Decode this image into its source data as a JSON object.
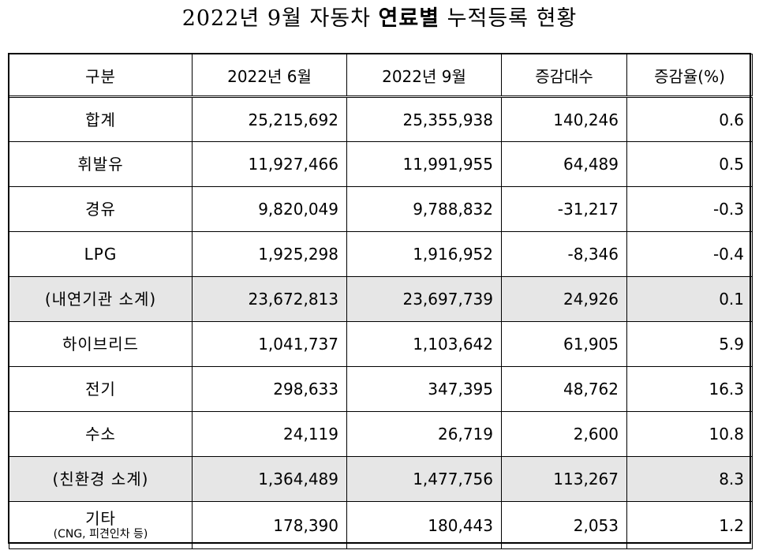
{
  "title": {
    "part1": "2022년 9월 자동차 ",
    "part2": "연료별",
    "part3": " 누적등록 현황"
  },
  "table": {
    "headers": [
      "구분",
      "2022년 6월",
      "2022년 9월",
      "증감대수",
      "증감율(%)"
    ],
    "rows": [
      {
        "label": "합계",
        "sub": "",
        "jun": "25,215,692",
        "sep": "25,355,938",
        "diff": "140,246",
        "rate": "0.6",
        "subtotal": false
      },
      {
        "label": "휘발유",
        "sub": "",
        "jun": "11,927,466",
        "sep": "11,991,955",
        "diff": "64,489",
        "rate": "0.5",
        "subtotal": false
      },
      {
        "label": "경유",
        "sub": "",
        "jun": "9,820,049",
        "sep": "9,788,832",
        "diff": "-31,217",
        "rate": "-0.3",
        "subtotal": false
      },
      {
        "label": "LPG",
        "sub": "",
        "jun": "1,925,298",
        "sep": "1,916,952",
        "diff": "-8,346",
        "rate": "-0.4",
        "subtotal": false
      },
      {
        "label": "(내연기관 소계)",
        "sub": "",
        "jun": "23,672,813",
        "sep": "23,697,739",
        "diff": "24,926",
        "rate": "0.1",
        "subtotal": true
      },
      {
        "label": "하이브리드",
        "sub": "",
        "jun": "1,041,737",
        "sep": "1,103,642",
        "diff": "61,905",
        "rate": "5.9",
        "subtotal": false
      },
      {
        "label": "전기",
        "sub": "",
        "jun": "298,633",
        "sep": "347,395",
        "diff": "48,762",
        "rate": "16.3",
        "subtotal": false
      },
      {
        "label": "수소",
        "sub": "",
        "jun": "24,119",
        "sep": "26,719",
        "diff": "2,600",
        "rate": "10.8",
        "subtotal": false
      },
      {
        "label": "(친환경 소계)",
        "sub": "",
        "jun": "1,364,489",
        "sep": "1,477,756",
        "diff": "113,267",
        "rate": "8.3",
        "subtotal": true
      },
      {
        "label": "기타",
        "sub": "(CNG, 피견인차 등)",
        "jun": "178,390",
        "sep": "180,443",
        "diff": "2,053",
        "rate": "1.2",
        "subtotal": false
      }
    ]
  }
}
